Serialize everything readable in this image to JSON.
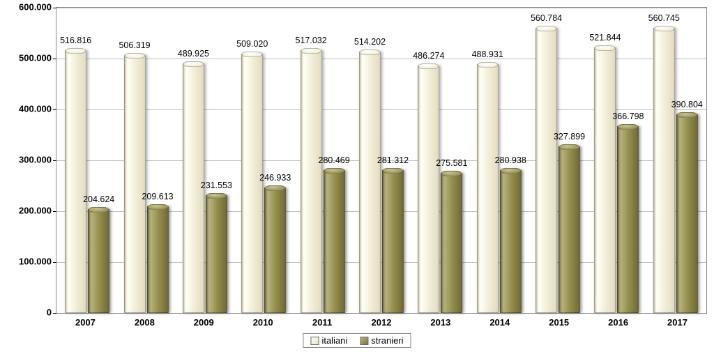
{
  "chart": {
    "type": "bar",
    "categories": [
      "2007",
      "2008",
      "2009",
      "2010",
      "2011",
      "2012",
      "2013",
      "2014",
      "2015",
      "2016",
      "2017"
    ],
    "series": [
      {
        "name": "italiani",
        "color_light": "#f3efd9",
        "color_dark": "#e2ddc1",
        "values": [
          516816,
          506319,
          489925,
          509020,
          517032,
          514202,
          486274,
          488931,
          560784,
          521844,
          560745
        ],
        "labels": [
          "516.816",
          "506.319",
          "489.925",
          "509.020",
          "517.032",
          "514.202",
          "486.274",
          "488.931",
          "560.784",
          "521.844",
          "560.745"
        ]
      },
      {
        "name": "stranieri",
        "color_light": "#a7a26b",
        "color_dark": "#7c7640",
        "values": [
          204624,
          209613,
          231553,
          246933,
          280469,
          281312,
          275581,
          280938,
          327899,
          366798,
          390804
        ],
        "labels": [
          "204.624",
          "209.613",
          "231.553",
          "246.933",
          "280.469",
          "281.312",
          "275.581",
          "280.938",
          "327.899",
          "366.798",
          "390.804"
        ]
      }
    ],
    "y_axis": {
      "min": 0,
      "max": 600000,
      "ticks": [
        0,
        100000,
        200000,
        300000,
        400000,
        500000,
        600000
      ],
      "tick_labels": [
        "0",
        "100.000",
        "200.000",
        "300.000",
        "400.000",
        "500.000",
        "600.000"
      ]
    },
    "styling": {
      "background": "#ffffff",
      "grid_color": "#bfbfbf",
      "axis_font_size": 13,
      "axis_font_weight": "bold",
      "datalabel_font_size": 12.5,
      "legend_border": "#888888",
      "plot_border": "#888888"
    }
  }
}
